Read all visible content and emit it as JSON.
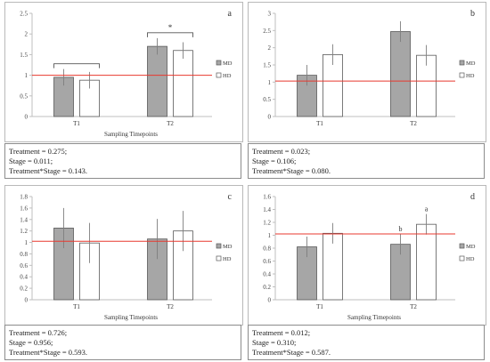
{
  "colors": {
    "md_fill": "#a6a6a6",
    "hd_fill": "#ffffff",
    "bar_stroke": "#595959",
    "reference_line": "#e8382f",
    "axis": "#bfbfbf",
    "error_bar": "#7f7f7f"
  },
  "chart_data": [
    {
      "panel_label": "a",
      "type": "bar",
      "xlabel": "Sampling Timepoints",
      "ylabel": "",
      "categories": [
        "T1",
        "T2"
      ],
      "series": [
        {
          "name": "MD",
          "values": [
            0.95,
            1.7
          ],
          "errors": [
            0.2,
            0.2
          ]
        },
        {
          "name": "HD",
          "values": [
            0.88,
            1.6
          ],
          "errors": [
            0.2,
            0.2
          ]
        }
      ],
      "ylim": [
        0,
        2.5
      ],
      "ticks": [
        "0",
        "0.5",
        "1",
        "1.5",
        "2",
        "2.5"
      ],
      "reference_line": 1,
      "legend_position": "right",
      "significance": [
        {
          "category": "T2",
          "label": "*"
        }
      ],
      "annotations": [],
      "stats": [
        "Treatment = 0.275;",
        "Stage = 0.011;",
        "Treatment*Stage = 0.143."
      ]
    },
    {
      "panel_label": "b",
      "type": "bar",
      "xlabel": "",
      "ylabel": "",
      "categories": [
        "T1",
        "T2"
      ],
      "series": [
        {
          "name": "MD",
          "values": [
            1.2,
            2.47
          ],
          "errors": [
            0.3,
            0.3
          ]
        },
        {
          "name": "HD",
          "values": [
            1.8,
            1.78
          ],
          "errors": [
            0.3,
            0.3
          ]
        }
      ],
      "ylim": [
        0,
        3
      ],
      "ticks": [
        "0",
        "0.5",
        "1",
        "1.5",
        "2",
        "2.5",
        "3"
      ],
      "reference_line": 1.03,
      "legend_position": "right",
      "significance": [],
      "annotations": [],
      "stats": [
        "Treatment = 0.023;",
        "Stage = 0.106;",
        "Treatment*Stage = 0.080."
      ]
    },
    {
      "panel_label": "c",
      "type": "bar",
      "xlabel": "Sampling Timepoints",
      "ylabel": "",
      "categories": [
        "T1",
        "T2"
      ],
      "series": [
        {
          "name": "MD",
          "values": [
            1.25,
            1.06
          ],
          "errors": [
            0.35,
            0.35
          ]
        },
        {
          "name": "HD",
          "values": [
            0.99,
            1.2
          ],
          "errors": [
            0.35,
            0.35
          ]
        }
      ],
      "ylim": [
        0,
        1.8
      ],
      "ticks": [
        "0",
        "0.2",
        "0.4",
        "0.6",
        "0.8",
        "1",
        "1.2",
        "1.4",
        "1.6",
        "1.8"
      ],
      "reference_line": 1.02,
      "legend_position": "right",
      "significance": [],
      "annotations": [],
      "stats": [
        "Treatment = 0.726;",
        "Stage = 0.956;",
        "Treatment*Stage = 0.593."
      ]
    },
    {
      "panel_label": "d",
      "type": "bar",
      "xlabel": "Sampling Timepoints",
      "ylabel": "",
      "categories": [
        "T1",
        "T2"
      ],
      "series": [
        {
          "name": "MD",
          "values": [
            0.82,
            0.86
          ],
          "errors": [
            0.16,
            0.16
          ]
        },
        {
          "name": "HD",
          "values": [
            1.03,
            1.17
          ],
          "errors": [
            0.16,
            0.16
          ]
        }
      ],
      "ylim": [
        0,
        1.6
      ],
      "ticks": [
        "0",
        "0.2",
        "0.4",
        "0.6",
        "0.8",
        "1",
        "1.2",
        "1.4",
        "1.6"
      ],
      "reference_line": 1.02,
      "legend_position": "right",
      "significance": [],
      "annotations": [
        {
          "category": 1,
          "series": 0,
          "text": "b"
        },
        {
          "category": 1,
          "series": 1,
          "text": "a"
        }
      ],
      "stats": [
        "Treatment = 0.012;",
        "Stage = 0.310;",
        "Treatment*Stage = 0.587."
      ]
    }
  ]
}
